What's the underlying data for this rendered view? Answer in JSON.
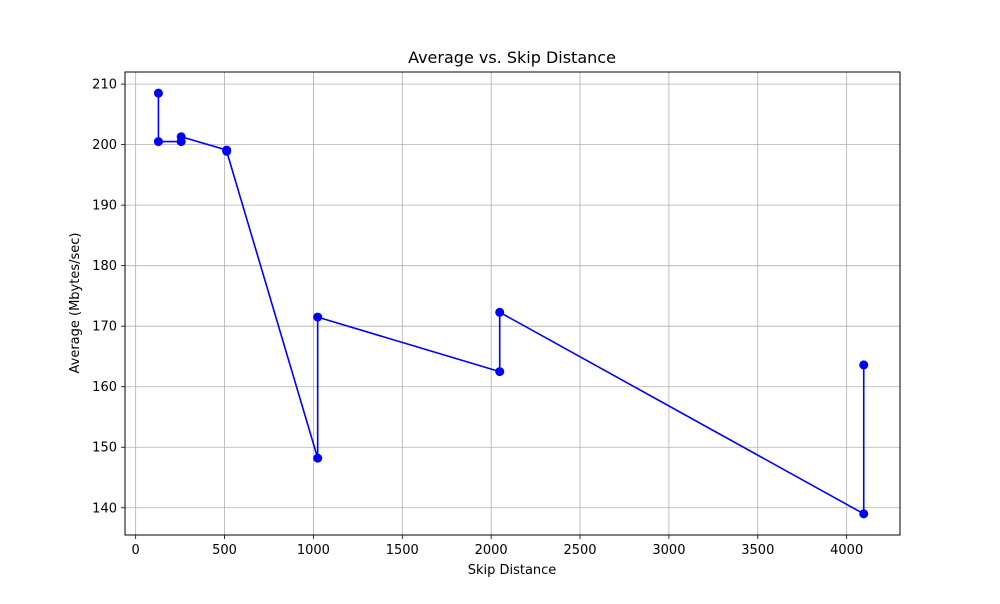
{
  "chart_data": {
    "type": "line",
    "title": "Average vs. Skip Distance",
    "xlabel": "Skip Distance",
    "ylabel": "Average (Mbytes/sec)",
    "xlim": [
      -60,
      4300
    ],
    "ylim": [
      135.5,
      212.0
    ],
    "xticks": [
      0,
      500,
      1000,
      1500,
      2000,
      2500,
      3000,
      3500,
      4000
    ],
    "yticks": [
      140,
      150,
      160,
      170,
      180,
      190,
      200,
      210
    ],
    "grid": true,
    "series": [
      {
        "color": "#0000ff",
        "marker": "circle",
        "x": [
          128,
          128,
          256,
          256,
          512,
          512,
          1024,
          1024,
          2048,
          2048,
          4096,
          4096
        ],
        "y": [
          208.5,
          200.5,
          200.5,
          201.3,
          199.1,
          198.9,
          148.2,
          171.5,
          162.5,
          172.3,
          139.0,
          163.6
        ]
      }
    ]
  }
}
